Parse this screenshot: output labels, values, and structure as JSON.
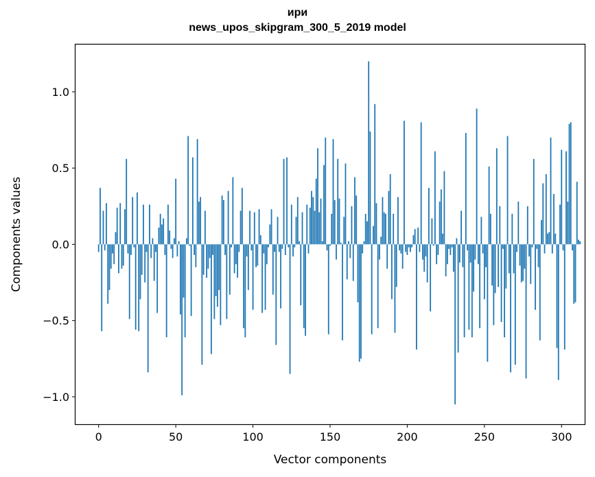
{
  "chart_data": {
    "type": "bar",
    "title_line1": "ири",
    "title_line2": "news_upos_skipgram_300_5_2019 model",
    "xlabel": "Vector components",
    "ylabel": "Components values",
    "xlim": [
      -15,
      315
    ],
    "ylim": [
      -1.18,
      1.31
    ],
    "xticks": [
      0,
      50,
      100,
      150,
      200,
      250,
      300
    ],
    "xtick_labels": [
      "0",
      "50",
      "100",
      "150",
      "200",
      "250",
      "300"
    ],
    "yticks": [
      -1.0,
      -0.5,
      0.0,
      0.5,
      1.0
    ],
    "ytick_labels": [
      "−1.0",
      "−0.5",
      "0.0",
      "0.5",
      "1.0"
    ],
    "bar_color": "#1f77b4",
    "values": [
      -0.05,
      0.37,
      -0.57,
      0.22,
      -0.04,
      0.27,
      -0.39,
      -0.3,
      -0.16,
      -0.06,
      -0.13,
      0.08,
      0.24,
      -0.19,
      0.27,
      -0.16,
      -0.14,
      0.23,
      0.56,
      -0.06,
      -0.49,
      -0.07,
      0.31,
      -0.02,
      -0.56,
      0.34,
      -0.57,
      -0.36,
      -0.2,
      0.26,
      -0.25,
      -0.05,
      -0.84,
      0.26,
      -0.09,
      0.04,
      -0.24,
      -0.05,
      -0.45,
      0.11,
      0.2,
      0.13,
      0.17,
      -0.07,
      -0.61,
      0.26,
      0.09,
      -0.03,
      -0.09,
      0.04,
      0.43,
      -0.08,
      0.02,
      -0.46,
      -0.99,
      -0.35,
      -0.61,
      0.04,
      0.71,
      -0.01,
      -0.47,
      0.57,
      -0.07,
      -0.15,
      0.69,
      0.28,
      0.31,
      -0.79,
      -0.2,
      0.22,
      -0.22,
      -0.16,
      -0.09,
      -0.72,
      -0.07,
      -0.49,
      -0.34,
      -0.41,
      -0.3,
      -0.53,
      0.32,
      0.29,
      -0.07,
      -0.49,
      0.35,
      -0.33,
      -0.02,
      0.44,
      -0.19,
      -0.13,
      -0.22,
      -0.05,
      0.22,
      0.37,
      -0.55,
      -0.61,
      -0.08,
      -0.3,
      0.22,
      -0.04,
      -0.43,
      0.21,
      -0.15,
      -0.14,
      0.23,
      0.06,
      -0.45,
      -0.06,
      -0.43,
      -0.13,
      -0.02,
      0.13,
      0.23,
      -0.33,
      -0.05,
      -0.66,
      0.18,
      -0.05,
      -0.42,
      -0.03,
      0.56,
      -0.07,
      0.57,
      -0.02,
      -0.85,
      0.26,
      -0.08,
      -0.02,
      0.18,
      0.31,
      0.02,
      -0.4,
      0.21,
      -0.55,
      -0.6,
      0.26,
      -0.06,
      0.24,
      0.35,
      0.31,
      0.22,
      0.43,
      0.63,
      0.21,
      0.3,
      0.02,
      0.52,
      0.7,
      -0.04,
      -0.59,
      -0.01,
      0.2,
      0.69,
      0.29,
      -0.1,
      0.56,
      0.3,
      0.01,
      -0.63,
      0.18,
      0.53,
      -0.23,
      0.02,
      -0.09,
      0.25,
      -0.24,
      0.44,
      0.32,
      -0.38,
      -0.77,
      -0.75,
      -0.06,
      0.02,
      0.2,
      0.15,
      1.2,
      0.74,
      -0.59,
      0.12,
      0.92,
      0.27,
      -0.55,
      -0.1,
      0.05,
      0.31,
      0.21,
      0.2,
      -0.16,
      0.35,
      0.46,
      -0.36,
      0.2,
      -0.58,
      -0.28,
      0.31,
      -0.04,
      -0.06,
      -0.16,
      0.81,
      -0.05,
      -0.07,
      -0.02,
      -0.05,
      -0.02,
      0.06,
      0.1,
      -0.69,
      0.11,
      -0.05,
      0.8,
      -0.1,
      -0.18,
      -0.08,
      -0.25,
      0.37,
      -0.44,
      0.17,
      -0.01,
      0.61,
      -0.13,
      -0.07,
      0.28,
      0.36,
      0.07,
      0.48,
      -0.21,
      -0.13,
      -0.03,
      -0.07,
      -0.02,
      -0.18,
      -1.05,
      0.04,
      -0.71,
      -0.12,
      0.22,
      -0.15,
      -0.61,
      0.73,
      -0.04,
      -0.56,
      -0.12,
      -0.61,
      -0.31,
      -0.1,
      0.89,
      -0.13,
      -0.55,
      0.18,
      -0.06,
      -0.36,
      -0.15,
      -0.77,
      0.51,
      0.2,
      -0.27,
      -0.53,
      -0.32,
      0.63,
      -0.28,
      0.25,
      -0.51,
      -0.03,
      -0.61,
      -0.29,
      0.71,
      -0.19,
      -0.84,
      0.2,
      -0.19,
      -0.79,
      -0.05,
      0.28,
      -0.14,
      -0.25,
      -0.24,
      -0.16,
      -0.88,
      0.25,
      -0.08,
      -0.26,
      -0.02,
      0.56,
      -0.43,
      -0.03,
      -0.15,
      -0.63,
      0.16,
      0.4,
      -0.06,
      0.46,
      0.07,
      0.08,
      0.7,
      -0.06,
      0.33,
      0.07,
      -0.68,
      -0.89,
      0.26,
      0.62,
      -0.04,
      -0.69,
      0.61,
      0.28,
      0.79,
      0.8,
      -0.04,
      -0.39,
      -0.38,
      0.41,
      0.03,
      0.02
    ]
  }
}
